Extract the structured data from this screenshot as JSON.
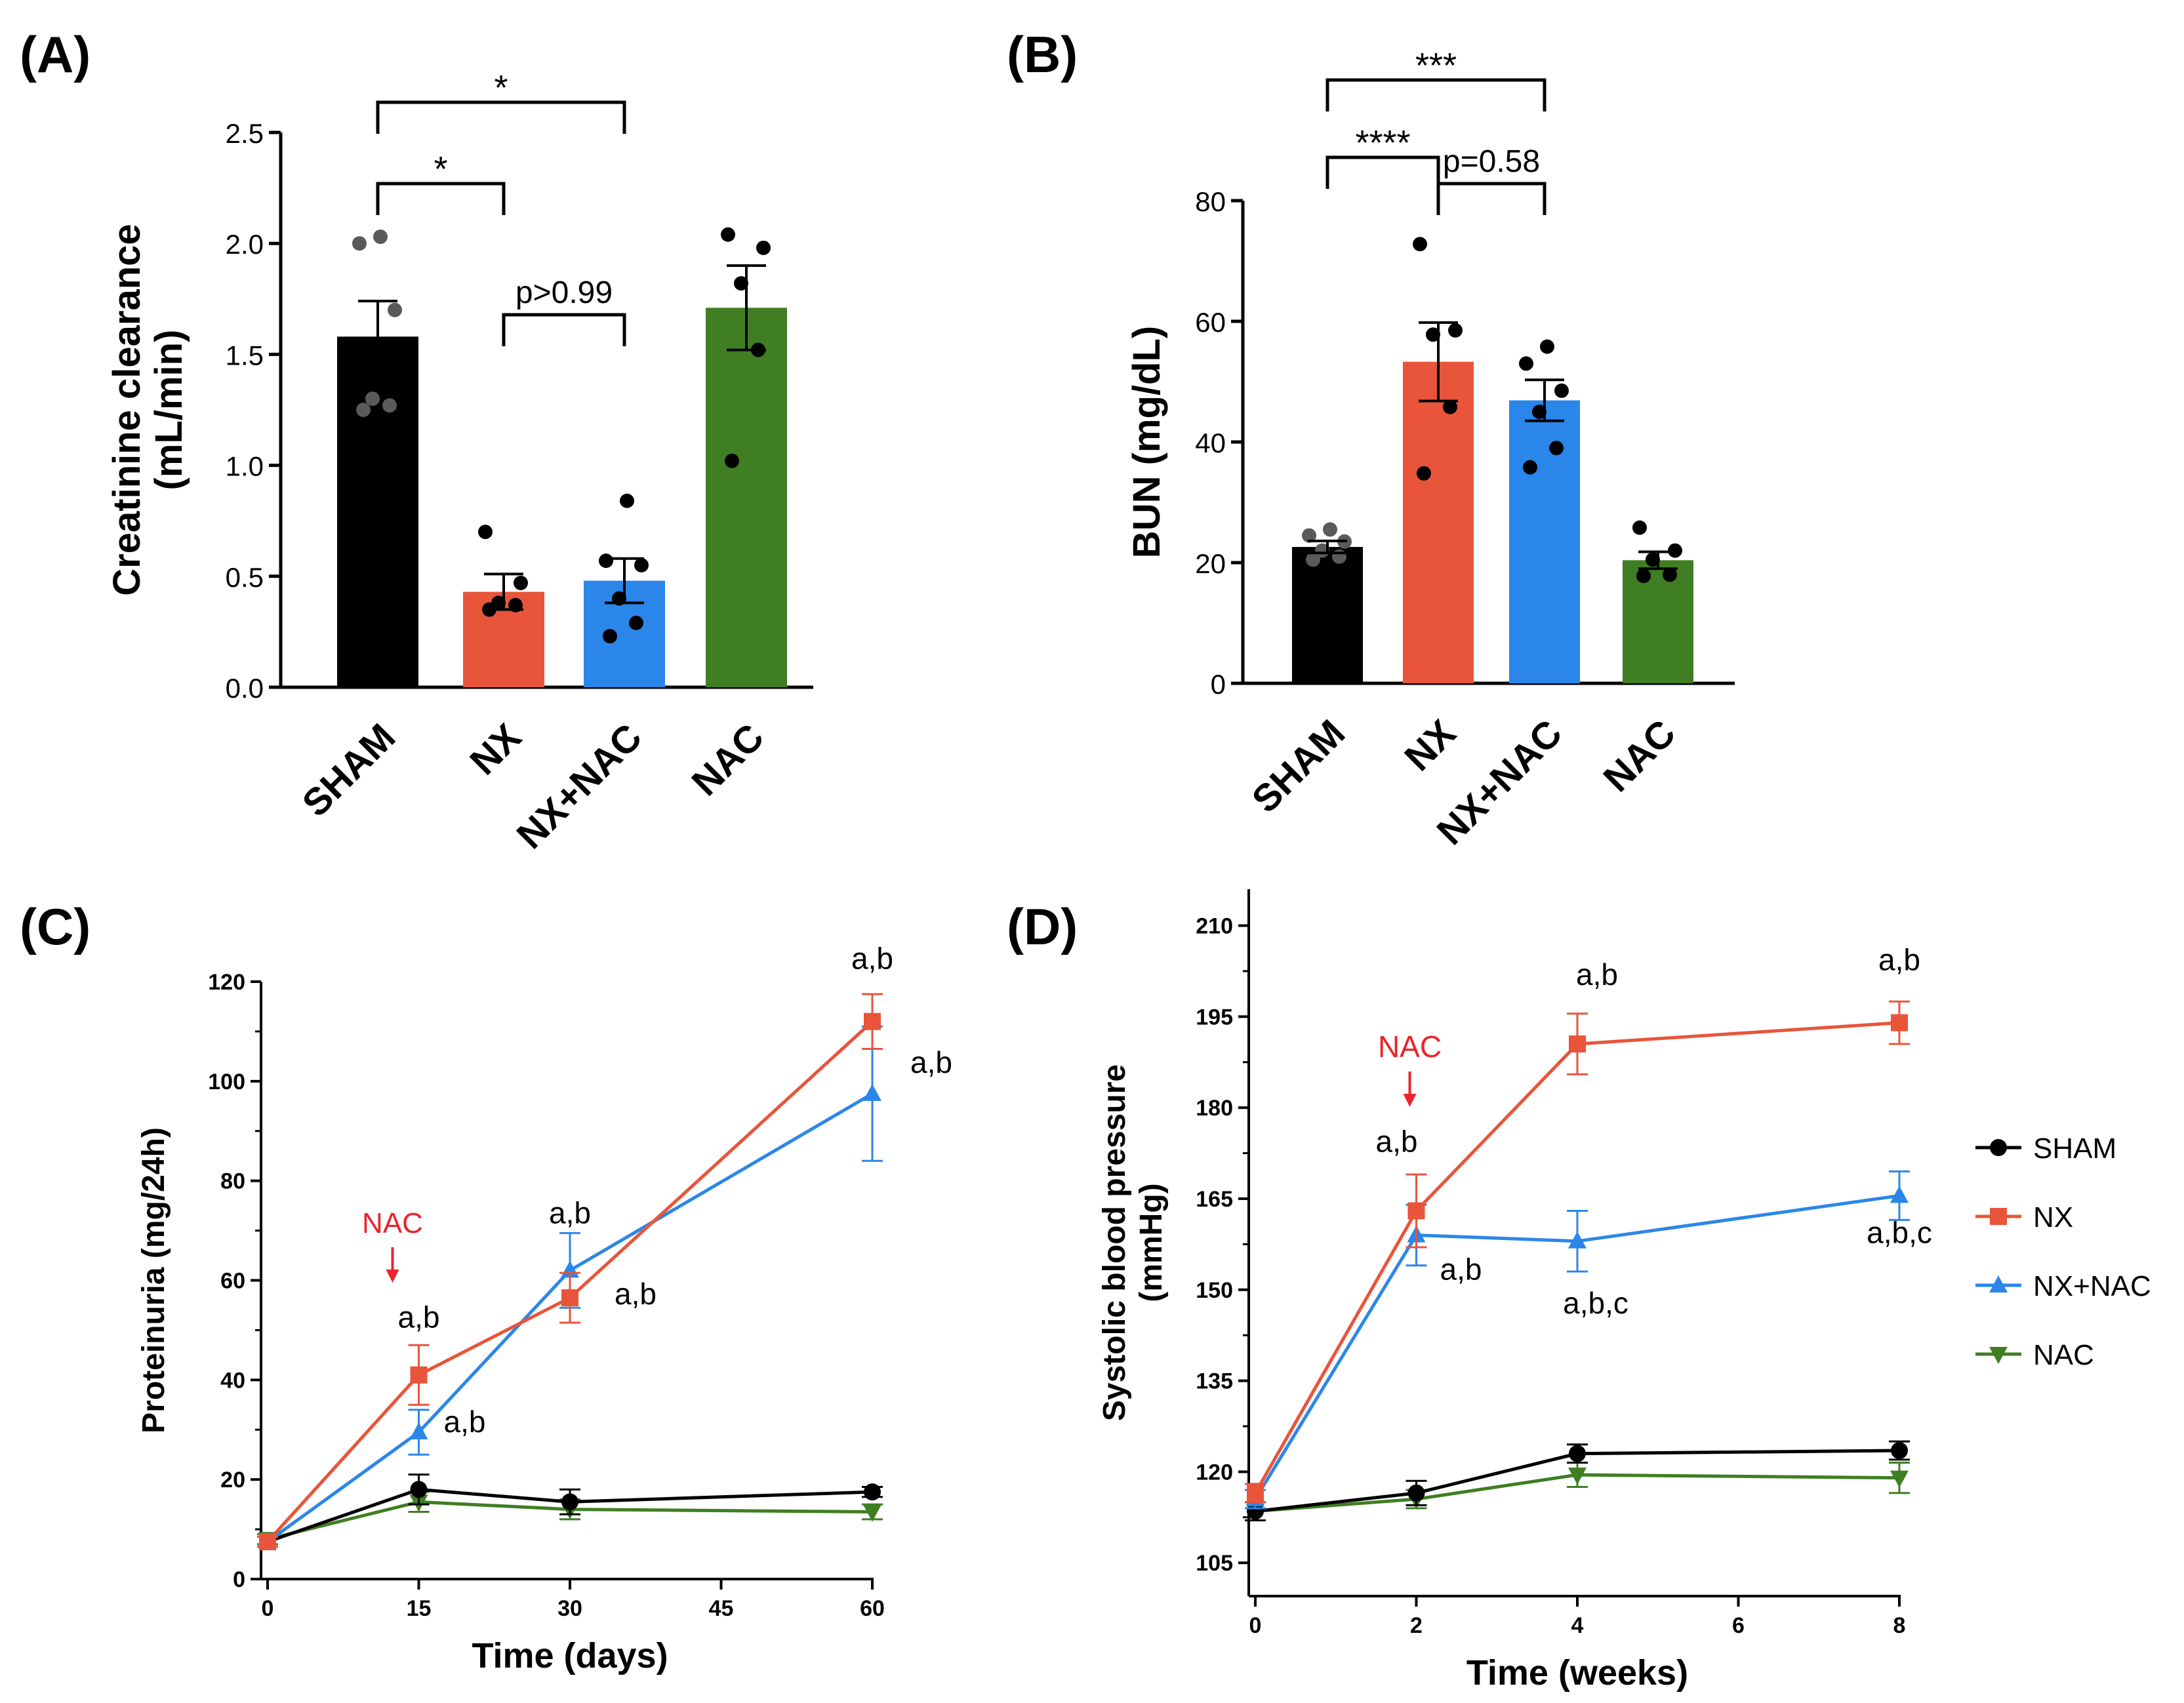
{
  "panels": {
    "A": "(A)",
    "B": "(B)",
    "C": "(C)",
    "D": "(D)"
  },
  "colors": {
    "SHAM": "#000000",
    "NX": "#e8553a",
    "NX+NAC": "#2b86ea",
    "NAC": "#3f7e22",
    "nac_marker": "#e8252b"
  },
  "chart_data": [
    {
      "panel": "A",
      "type": "bar",
      "ylabel": "Creatinine clearance (mL/min)",
      "ylabel_lines": [
        "Creatinine clearance",
        "(mL/min)"
      ],
      "ylim": [
        0,
        2.5
      ],
      "yticks": [
        "0.0",
        "0.5",
        "1.0",
        "1.5",
        "2.0",
        "2.5"
      ],
      "categories": [
        "SHAM",
        "NX",
        "NX+NAC",
        "NAC"
      ],
      "values": [
        1.58,
        0.43,
        0.48,
        1.71
      ],
      "sem": [
        0.16,
        0.08,
        0.1,
        0.19
      ],
      "points": [
        [
          1.25,
          1.27,
          1.3,
          1.7,
          2.0,
          2.03
        ],
        [
          0.35,
          0.37,
          0.38,
          0.47,
          0.7
        ],
        [
          0.23,
          0.29,
          0.4,
          0.55,
          0.57,
          0.84
        ],
        [
          1.02,
          1.52,
          1.82,
          1.98,
          2.04
        ]
      ],
      "comparisons": [
        {
          "label": "*",
          "from": "SHAM",
          "to": "NX+NAC"
        },
        {
          "label": "*",
          "from": "SHAM",
          "to": "NX"
        },
        {
          "label": "p>0.99",
          "from": "NX",
          "to": "NX+NAC"
        }
      ]
    },
    {
      "panel": "B",
      "type": "bar",
      "ylabel": "BUN (mg/dL)",
      "ylim": [
        0,
        80
      ],
      "yticks": [
        "0",
        "20",
        "40",
        "60",
        "80"
      ],
      "categories": [
        "SHAM",
        "NX",
        "NX+NAC",
        "NAC"
      ],
      "values": [
        22.6,
        53.3,
        46.9,
        20.4
      ],
      "sem": [
        1.0,
        6.5,
        3.4,
        1.4
      ],
      "points": [
        [
          20.5,
          21.0,
          22.0,
          23.5,
          24.5,
          25.5
        ],
        [
          34.8,
          45.8,
          57.8,
          58.5,
          72.8
        ],
        [
          35.8,
          39.0,
          45.0,
          48.5,
          53.0,
          55.8
        ],
        [
          17.8,
          18.0,
          20.5,
          22.0,
          25.8
        ]
      ],
      "comparisons": [
        {
          "label": "***",
          "from": "SHAM",
          "to": "NX+NAC"
        },
        {
          "label": "****",
          "from": "SHAM",
          "to": "NX"
        },
        {
          "label": "p=0.58",
          "from": "NX",
          "to": "NX+NAC"
        }
      ]
    },
    {
      "panel": "C",
      "type": "line",
      "xlabel": "Time (days)",
      "ylabel": "Proteinuria (mg/24h)",
      "xlim": [
        0,
        60
      ],
      "ylim": [
        0,
        120
      ],
      "xticks": [
        0,
        15,
        30,
        45,
        60
      ],
      "yticks": [
        0,
        20,
        40,
        60,
        80,
        100,
        120
      ],
      "x": [
        0,
        15,
        30,
        60
      ],
      "series": [
        {
          "name": "SHAM",
          "marker": "circle",
          "values": [
            7.5,
            18,
            15.5,
            17.5
          ],
          "err": [
            1.0,
            3.0,
            2.5,
            1.0
          ]
        },
        {
          "name": "NX",
          "marker": "square",
          "values": [
            7.5,
            41,
            56.5,
            112
          ],
          "err": [
            1.0,
            6.0,
            5.0,
            5.5
          ]
        },
        {
          "name": "NX+NAC",
          "marker": "triangle-up",
          "values": [
            7.5,
            29.5,
            62,
            97.5
          ],
          "err": [
            1.0,
            4.5,
            7.5,
            13.5
          ]
        },
        {
          "name": "NAC",
          "marker": "triangle-down",
          "values": [
            8.0,
            15.5,
            14,
            13.5
          ],
          "err": [
            1.0,
            2.0,
            2.0,
            1.5
          ]
        }
      ],
      "intervention": {
        "label": "NAC",
        "x": 15
      },
      "annotations": [
        {
          "text": "a,b",
          "x": 15,
          "y": 41
        },
        {
          "text": "a,b",
          "x": 15,
          "y": 29.5
        },
        {
          "text": "a,b",
          "x": 30,
          "y": 62
        },
        {
          "text": "a,b",
          "x": 30,
          "y": 56.5
        },
        {
          "text": "a,b",
          "x": 60,
          "y": 112
        },
        {
          "text": "a,b",
          "x": 60,
          "y": 97.5
        }
      ]
    },
    {
      "panel": "D",
      "type": "line",
      "xlabel": "Time (weeks)",
      "ylabel": "Systolic blood pressure (mmHg)",
      "ylabel_lines": [
        "Systolic blood pressure",
        "(mmHg)"
      ],
      "xlim": [
        0,
        8
      ],
      "ylim": [
        102,
        216
      ],
      "xticks": [
        0,
        2,
        4,
        6,
        8
      ],
      "yticks": [
        105,
        120,
        135,
        150,
        165,
        180,
        195,
        210
      ],
      "x": [
        0,
        2,
        4,
        8
      ],
      "series": [
        {
          "name": "SHAM",
          "marker": "circle",
          "values": [
            113.5,
            116.5,
            123,
            123.5
          ],
          "err": [
            1.5,
            2.0,
            1.5,
            1.5
          ]
        },
        {
          "name": "NX",
          "marker": "square",
          "values": [
            116.5,
            163,
            190.5,
            194
          ],
          "err": [
            1.5,
            6.0,
            5.0,
            3.5
          ]
        },
        {
          "name": "NX+NAC",
          "marker": "triangle-up",
          "values": [
            115.5,
            159,
            158,
            165.5
          ],
          "err": [
            1.5,
            5.0,
            5.0,
            4.0
          ]
        },
        {
          "name": "NAC",
          "marker": "triangle-down",
          "values": [
            113.5,
            115.5,
            119.5,
            119
          ],
          "err": [
            1.5,
            1.5,
            2.0,
            2.5
          ]
        }
      ],
      "intervention": {
        "label": "NAC",
        "x": 2
      },
      "annotations": [
        {
          "text": "a,b",
          "x": 2,
          "y": 163
        },
        {
          "text": "a,b",
          "x": 2,
          "y": 159
        },
        {
          "text": "a,b",
          "x": 4,
          "y": 190.5
        },
        {
          "text": "a,b,c",
          "x": 4,
          "y": 158
        },
        {
          "text": "a,b",
          "x": 8,
          "y": 194
        },
        {
          "text": "a,b,c",
          "x": 8,
          "y": 165.5
        }
      ],
      "legend": [
        "SHAM",
        "NX",
        "NX+NAC",
        "NAC"
      ]
    }
  ]
}
